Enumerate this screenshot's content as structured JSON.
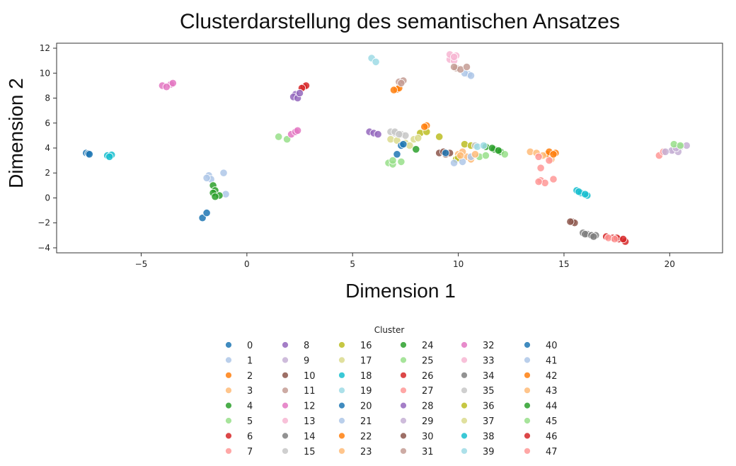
{
  "chart_data": {
    "type": "scatter",
    "title": "Clusterdarstellung des semantischen Ansatzes",
    "xlabel": "Dimension 1",
    "ylabel": "Dimension 2",
    "xlim": [
      -9,
      22.5
    ],
    "ylim": [
      -4.4,
      12.4
    ],
    "xticks": [
      -5,
      0,
      5,
      10,
      15,
      20
    ],
    "yticks": [
      -4,
      -2,
      0,
      2,
      4,
      6,
      8,
      10,
      12
    ],
    "grid": false,
    "legend": {
      "title": "Cluster",
      "placement": "below-center",
      "columns": 6
    },
    "palette": [
      "#1f77b4",
      "#aec7e8",
      "#ff7f0e",
      "#ffbb78",
      "#2ca02c",
      "#98df8a",
      "#d62728",
      "#ff9896",
      "#9467bd",
      "#c5b0d5",
      "#8c564b",
      "#c49c94",
      "#e377c2",
      "#f7b6d2",
      "#7f7f7f",
      "#c7c7c7",
      "#bcbd22",
      "#dbdb8d",
      "#17becf",
      "#9edae5"
    ],
    "series": [
      {
        "name": "0",
        "points": [
          [
            -7.6,
            3.6
          ],
          [
            -7.5,
            3.55
          ],
          [
            -7.45,
            3.5
          ]
        ]
      },
      {
        "name": "1",
        "points": [
          [
            -1.8,
            1.8
          ],
          [
            -1.7,
            1.5
          ],
          [
            -1.9,
            1.6
          ],
          [
            -1.1,
            2.0
          ],
          [
            -1.0,
            0.3
          ]
        ]
      },
      {
        "name": "2",
        "points": [
          [
            7.1,
            8.7
          ],
          [
            7.2,
            8.8
          ],
          [
            6.95,
            8.65
          ]
        ]
      },
      {
        "name": "3",
        "points": [
          [
            10.0,
            3.5
          ],
          [
            10.4,
            3.3
          ],
          [
            10.6,
            3.1
          ],
          [
            10.2,
            3.7
          ]
        ]
      },
      {
        "name": "4",
        "points": [
          [
            -1.6,
            1.0
          ],
          [
            -1.5,
            0.6
          ],
          [
            -1.6,
            0.4
          ],
          [
            -1.3,
            0.2
          ],
          [
            -1.5,
            0.1
          ]
        ]
      },
      {
        "name": "5",
        "points": [
          [
            1.5,
            4.9
          ],
          [
            1.9,
            4.7
          ],
          [
            6.7,
            2.8
          ],
          [
            7.3,
            2.9
          ],
          [
            6.9,
            2.7
          ]
        ]
      },
      {
        "name": "6",
        "points": [
          [
            2.7,
            8.9
          ],
          [
            2.8,
            9.0
          ],
          [
            2.6,
            8.8
          ]
        ]
      },
      {
        "name": "7",
        "points": [
          [
            13.9,
            1.4
          ],
          [
            14.1,
            1.2
          ],
          [
            14.5,
            1.5
          ],
          [
            13.8,
            1.3
          ]
        ]
      },
      {
        "name": "8",
        "points": [
          [
            2.3,
            8.3
          ],
          [
            2.2,
            8.1
          ],
          [
            2.4,
            8.0
          ],
          [
            2.5,
            8.4
          ]
        ]
      },
      {
        "name": "9",
        "points": [
          [
            20.5,
            4.1
          ],
          [
            20.2,
            3.8
          ],
          [
            20.8,
            4.2
          ],
          [
            20.4,
            3.7
          ]
        ]
      },
      {
        "name": "10",
        "points": [
          [
            9.1,
            3.6
          ],
          [
            9.4,
            3.5
          ],
          [
            9.6,
            3.6
          ],
          [
            9.3,
            3.7
          ]
        ]
      },
      {
        "name": "11",
        "points": [
          [
            7.2,
            9.3
          ],
          [
            7.4,
            9.4
          ],
          [
            7.3,
            9.2
          ]
        ]
      },
      {
        "name": "12",
        "points": [
          [
            -4.0,
            9.0
          ],
          [
            -3.6,
            9.1
          ],
          [
            -3.8,
            8.9
          ],
          [
            -3.5,
            9.2
          ]
        ]
      },
      {
        "name": "13",
        "points": [
          [
            9.7,
            11.3
          ],
          [
            9.9,
            11.4
          ],
          [
            9.6,
            11.1
          ],
          [
            9.8,
            11.0
          ]
        ]
      },
      {
        "name": "14",
        "points": [
          [
            15.9,
            -2.8
          ],
          [
            16.1,
            -2.9
          ],
          [
            16.3,
            -3.0
          ],
          [
            16.5,
            -3.0
          ]
        ]
      },
      {
        "name": "15",
        "points": [
          [
            7.0,
            5.2
          ],
          [
            7.3,
            5.1
          ],
          [
            7.5,
            5.0
          ],
          [
            6.8,
            5.3
          ]
        ]
      },
      {
        "name": "16",
        "points": [
          [
            10.3,
            4.3
          ],
          [
            10.6,
            4.2
          ],
          [
            8.2,
            5.2
          ],
          [
            8.5,
            5.3
          ]
        ]
      },
      {
        "name": "17",
        "points": [
          [
            6.8,
            4.7
          ],
          [
            7.1,
            4.6
          ],
          [
            7.5,
            4.4
          ],
          [
            7.7,
            4.2
          ]
        ]
      },
      {
        "name": "18",
        "points": [
          [
            -6.6,
            3.4
          ],
          [
            -6.4,
            3.45
          ],
          [
            -6.5,
            3.3
          ],
          [
            15.6,
            0.6
          ],
          [
            15.8,
            0.4
          ],
          [
            16.1,
            0.2
          ]
        ]
      },
      {
        "name": "19",
        "points": [
          [
            5.9,
            11.2
          ],
          [
            6.1,
            10.9
          ]
        ]
      },
      {
        "name": "20",
        "points": [
          [
            -2.1,
            -1.6
          ],
          [
            -1.9,
            -1.2
          ],
          [
            7.1,
            3.5
          ],
          [
            7.3,
            4.2
          ]
        ]
      },
      {
        "name": "21",
        "points": [
          [
            10.5,
            9.9
          ],
          [
            10.3,
            10.0
          ],
          [
            10.6,
            9.8
          ]
        ]
      },
      {
        "name": "22",
        "points": [
          [
            8.5,
            5.8
          ],
          [
            8.4,
            5.7
          ],
          [
            14.2,
            3.5
          ],
          [
            14.6,
            3.6
          ]
        ]
      },
      {
        "name": "23",
        "points": [
          [
            13.4,
            3.7
          ],
          [
            13.7,
            3.6
          ],
          [
            14.0,
            3.4
          ],
          [
            14.4,
            3.1
          ]
        ]
      },
      {
        "name": "24",
        "points": [
          [
            11.3,
            4.1
          ],
          [
            11.7,
            3.9
          ],
          [
            12.0,
            3.7
          ],
          [
            8.0,
            3.9
          ]
        ]
      },
      {
        "name": "25",
        "points": [
          [
            11.0,
            3.3
          ],
          [
            11.3,
            3.4
          ],
          [
            12.2,
            3.5
          ],
          [
            6.9,
            3.0
          ]
        ]
      },
      {
        "name": "26",
        "points": [
          [
            17.0,
            -3.1
          ],
          [
            17.3,
            -3.2
          ],
          [
            17.6,
            -3.3
          ],
          [
            17.9,
            -3.5
          ]
        ]
      },
      {
        "name": "27",
        "points": [
          [
            19.5,
            3.4
          ],
          [
            19.7,
            3.7
          ],
          [
            13.8,
            3.3
          ],
          [
            14.3,
            3.0
          ]
        ]
      },
      {
        "name": "28",
        "points": [
          [
            5.8,
            5.3
          ],
          [
            6.0,
            5.2
          ],
          [
            6.2,
            5.1
          ]
        ]
      },
      {
        "name": "29",
        "points": [
          [
            20.1,
            3.8
          ],
          [
            20.3,
            4.0
          ],
          [
            19.8,
            3.7
          ]
        ]
      },
      {
        "name": "30",
        "points": [
          [
            15.4,
            -1.9
          ],
          [
            15.5,
            -2.0
          ],
          [
            15.3,
            -1.9
          ]
        ]
      },
      {
        "name": "31",
        "points": [
          [
            9.9,
            10.4
          ],
          [
            10.1,
            10.3
          ],
          [
            10.4,
            10.5
          ],
          [
            9.8,
            10.5
          ]
        ]
      },
      {
        "name": "32",
        "points": [
          [
            2.1,
            5.1
          ],
          [
            2.3,
            5.3
          ],
          [
            2.4,
            5.4
          ]
        ]
      },
      {
        "name": "33",
        "points": [
          [
            9.6,
            11.5
          ],
          [
            9.8,
            11.3
          ]
        ]
      },
      {
        "name": "34",
        "points": [
          [
            16.0,
            -2.9
          ],
          [
            16.3,
            -3.0
          ],
          [
            16.4,
            -3.1
          ]
        ]
      },
      {
        "name": "35",
        "points": [
          [
            7.0,
            5.3
          ],
          [
            7.2,
            5.1
          ],
          [
            10.8,
            4.2
          ]
        ]
      },
      {
        "name": "36",
        "points": [
          [
            9.1,
            4.9
          ],
          [
            9.9,
            3.1
          ],
          [
            10.0,
            3.2
          ]
        ]
      },
      {
        "name": "37",
        "points": [
          [
            7.9,
            4.7
          ],
          [
            8.1,
            4.8
          ]
        ]
      },
      {
        "name": "38",
        "points": [
          [
            15.7,
            0.5
          ],
          [
            16.0,
            0.3
          ]
        ]
      },
      {
        "name": "39",
        "points": [
          [
            10.9,
            4.1
          ],
          [
            11.2,
            4.2
          ]
        ]
      },
      {
        "name": "40",
        "points": [
          [
            7.4,
            4.3
          ],
          [
            9.4,
            3.6
          ]
        ]
      },
      {
        "name": "41",
        "points": [
          [
            9.8,
            2.8
          ],
          [
            10.2,
            2.9
          ],
          [
            10.6,
            3.3
          ]
        ]
      },
      {
        "name": "42",
        "points": [
          [
            14.3,
            3.7
          ],
          [
            14.5,
            3.5
          ]
        ]
      },
      {
        "name": "43",
        "points": [
          [
            10.8,
            3.5
          ],
          [
            10.1,
            3.4
          ]
        ]
      },
      {
        "name": "44",
        "points": [
          [
            11.6,
            4.0
          ],
          [
            11.9,
            3.8
          ]
        ]
      },
      {
        "name": "45",
        "points": [
          [
            20.2,
            4.3
          ],
          [
            20.5,
            4.2
          ]
        ]
      },
      {
        "name": "46",
        "points": [
          [
            17.5,
            -3.2
          ],
          [
            17.8,
            -3.3
          ]
        ]
      },
      {
        "name": "47",
        "points": [
          [
            17.1,
            -3.2
          ],
          [
            17.4,
            -3.3
          ],
          [
            13.9,
            2.4
          ]
        ]
      }
    ]
  }
}
